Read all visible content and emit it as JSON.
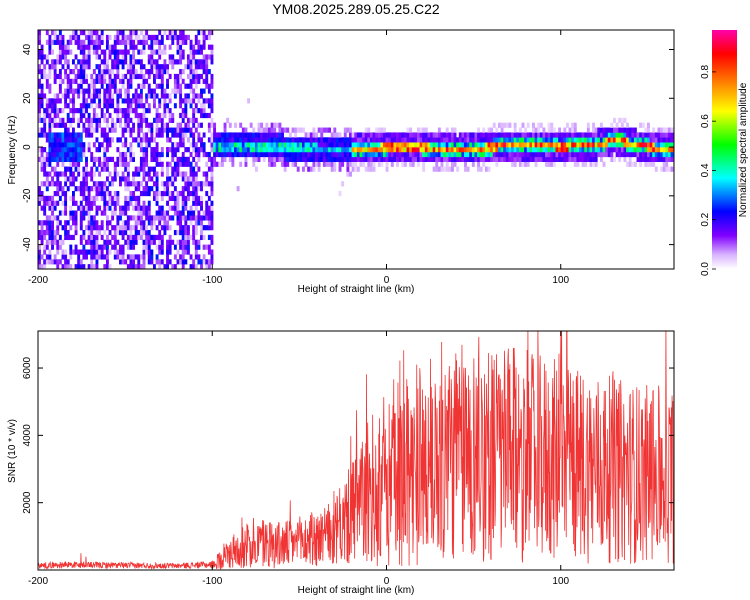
{
  "title": "YM08.2025.289.05.25.C22",
  "chart_data": [
    {
      "type": "heatmap",
      "name": "spectrogram",
      "xlabel": "Height of straight line (km)",
      "ylabel": "Frequency (Hz)",
      "xlim": [
        -200,
        165
      ],
      "ylim": [
        -50,
        48
      ],
      "x_ticks": [
        -200,
        -100,
        0,
        100
      ],
      "y_ticks": [
        -40,
        -20,
        0,
        20,
        40
      ],
      "colorbar": {
        "label": "Normalized spectral amplitude",
        "range": [
          0.0,
          0.97
        ],
        "ticks": [
          0.0,
          0.2,
          0.4,
          0.6,
          0.8
        ],
        "colormap": [
          "#ffffff",
          "#d9b3ff",
          "#8000ff",
          "#0000ff",
          "#00ffff",
          "#00ff00",
          "#ffff00",
          "#ff8000",
          "#ff0000",
          "#ff00aa"
        ]
      },
      "regions": [
        {
          "x_range": [
            -200,
            -100
          ],
          "description_level": "noise",
          "amplitude": [
            0.05,
            0.3
          ],
          "freq_span": [
            -50,
            48
          ]
        },
        {
          "x_range": [
            -100,
            -20
          ],
          "amplitude": [
            0.2,
            0.5
          ],
          "freq_center": 0,
          "freq_halfwidth": 6
        },
        {
          "x_range": [
            -20,
            165
          ],
          "amplitude": [
            0.6,
            0.95
          ],
          "freq_center": 0,
          "freq_halfwidth": 3
        }
      ],
      "ridge": {
        "x": [
          -100,
          -80,
          -60,
          -40,
          -20,
          0,
          20,
          40,
          60,
          80,
          100,
          120,
          130,
          150,
          165
        ],
        "freq": [
          0,
          1,
          0,
          -1,
          -1,
          0,
          0,
          -1,
          0,
          1,
          0,
          1,
          3,
          0,
          -1
        ]
      }
    },
    {
      "type": "line",
      "name": "snr",
      "xlabel": "Height of straight line (km)",
      "ylabel": "SNR (10 * v/v)",
      "xlim": [
        -200,
        165
      ],
      "ylim": [
        0,
        7100
      ],
      "x_ticks": [
        -200,
        -100,
        0,
        100
      ],
      "y_ticks": [
        2000,
        4000,
        6000
      ],
      "color": "#f03333",
      "envelope": [
        {
          "x": -200,
          "y": 150
        },
        {
          "x": -180,
          "y": 170
        },
        {
          "x": -150,
          "y": 150
        },
        {
          "x": -120,
          "y": 140
        },
        {
          "x": -100,
          "y": 180
        },
        {
          "x": -90,
          "y": 600
        },
        {
          "x": -80,
          "y": 900
        },
        {
          "x": -70,
          "y": 1000
        },
        {
          "x": -60,
          "y": 900
        },
        {
          "x": -50,
          "y": 1000
        },
        {
          "x": -40,
          "y": 1100
        },
        {
          "x": -30,
          "y": 1300
        },
        {
          "x": -20,
          "y": 2000
        },
        {
          "x": -10,
          "y": 2800
        },
        {
          "x": 0,
          "y": 3300
        },
        {
          "x": 10,
          "y": 3600
        },
        {
          "x": 20,
          "y": 3900
        },
        {
          "x": 40,
          "y": 4200
        },
        {
          "x": 60,
          "y": 4200
        },
        {
          "x": 80,
          "y": 4100
        },
        {
          "x": 100,
          "y": 3900
        },
        {
          "x": 120,
          "y": 3700
        },
        {
          "x": 140,
          "y": 3500
        },
        {
          "x": 165,
          "y": 3400
        }
      ],
      "peak_max": 7100
    }
  ]
}
